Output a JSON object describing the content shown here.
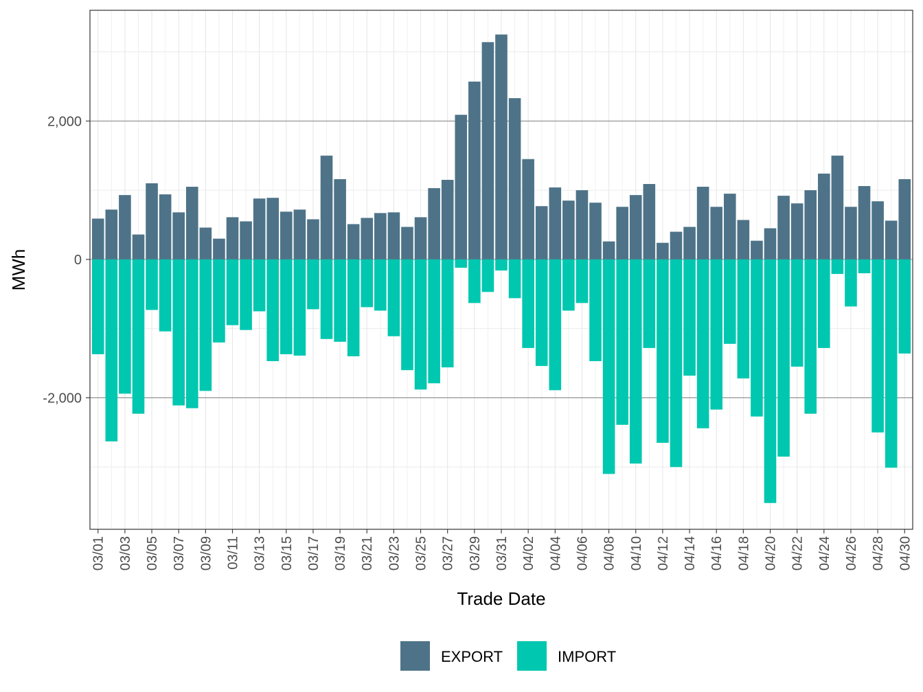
{
  "chart_data": {
    "type": "bar",
    "stacked": true,
    "xlabel": "Trade Date",
    "ylabel": "MWh",
    "ylim": [
      -3900,
      3600
    ],
    "yticks": [
      -2000,
      0,
      2000
    ],
    "ytick_labels": [
      "-2,000",
      "0",
      "2,000"
    ],
    "grid": true,
    "legend_position": "bottom",
    "categories": [
      "03/01",
      "03/02",
      "03/03",
      "03/04",
      "03/05",
      "03/06",
      "03/07",
      "03/08",
      "03/09",
      "03/10",
      "03/11",
      "03/12",
      "03/13",
      "03/14",
      "03/15",
      "03/16",
      "03/17",
      "03/18",
      "03/19",
      "03/20",
      "03/21",
      "03/22",
      "03/23",
      "03/24",
      "03/25",
      "03/26",
      "03/27",
      "03/28",
      "03/29",
      "03/30",
      "03/31",
      "04/01",
      "04/02",
      "04/03",
      "04/04",
      "04/05",
      "04/06",
      "04/07",
      "04/08",
      "04/09",
      "04/10",
      "04/11",
      "04/12",
      "04/13",
      "04/14",
      "04/15",
      "04/16",
      "04/17",
      "04/18",
      "04/19",
      "04/20",
      "04/21",
      "04/22",
      "04/23",
      "04/24",
      "04/25",
      "04/26",
      "04/27",
      "04/28",
      "04/29",
      "04/30"
    ],
    "xtick_labels": [
      "03/01",
      "03/03",
      "03/05",
      "03/07",
      "03/09",
      "03/11",
      "03/13",
      "03/15",
      "03/17",
      "03/19",
      "03/21",
      "03/23",
      "03/25",
      "03/27",
      "03/29",
      "03/31",
      "04/02",
      "04/04",
      "04/06",
      "04/08",
      "04/10",
      "04/12",
      "04/14",
      "04/16",
      "04/18",
      "04/20",
      "04/22",
      "04/24",
      "04/26",
      "04/28",
      "04/30"
    ],
    "series": [
      {
        "name": "EXPORT",
        "color": "#4e7388",
        "values": [
          590,
          720,
          930,
          360,
          1100,
          940,
          680,
          1050,
          460,
          300,
          610,
          550,
          880,
          890,
          690,
          720,
          580,
          1500,
          1160,
          510,
          600,
          670,
          680,
          470,
          610,
          1030,
          1150,
          2090,
          2570,
          3140,
          3250,
          2330,
          1450,
          770,
          1040,
          850,
          1000,
          820,
          260,
          760,
          930,
          1090,
          240,
          400,
          470,
          1050,
          760,
          950,
          570,
          270,
          450,
          920,
          810,
          1000,
          1240,
          1500,
          760,
          1060,
          840,
          560,
          1160
        ]
      },
      {
        "name": "IMPORT",
        "color": "#00c7b0",
        "values": [
          -1370,
          -2630,
          -1940,
          -2230,
          -730,
          -1040,
          -2110,
          -2150,
          -1900,
          -1200,
          -950,
          -1020,
          -750,
          -1470,
          -1370,
          -1390,
          -720,
          -1150,
          -1190,
          -1400,
          -690,
          -740,
          -1110,
          -1600,
          -1880,
          -1790,
          -1560,
          -120,
          -630,
          -470,
          -160,
          -560,
          -1280,
          -1540,
          -1890,
          -740,
          -630,
          -1470,
          -3100,
          -2390,
          -2950,
          -1280,
          -2650,
          -3000,
          -1680,
          -2440,
          -2170,
          -1220,
          -1720,
          -2270,
          -3520,
          -2850,
          -1550,
          -2230,
          -1280,
          -210,
          -680,
          -200,
          -2500,
          -3010,
          -1360
        ]
      }
    ]
  }
}
